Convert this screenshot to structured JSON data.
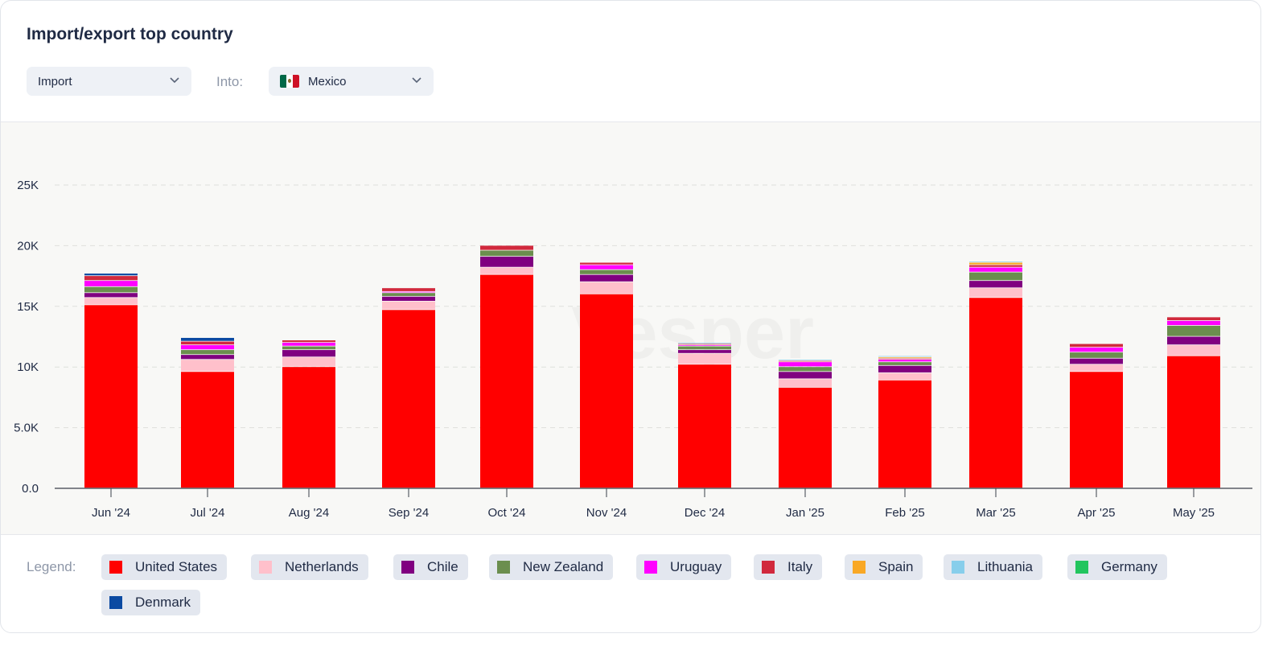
{
  "header": {
    "title": "Import/export top country",
    "flow_select": {
      "value": "Import",
      "icon": "chevron-down-icon"
    },
    "into_label": "Into:",
    "country_select": {
      "value": "Mexico",
      "flag": "mexico-flag-icon",
      "flag_colors": [
        "#006847",
        "#ffffff",
        "#ce1126"
      ],
      "icon": "chevron-down-icon"
    }
  },
  "legend": {
    "label": "Legend:",
    "items": [
      {
        "name": "United States",
        "color": "#ff0000"
      },
      {
        "name": "Netherlands",
        "color": "#ffc0cb"
      },
      {
        "name": "Chile",
        "color": "#800080"
      },
      {
        "name": "New Zealand",
        "color": "#6b8e4e"
      },
      {
        "name": "Uruguay",
        "color": "#ff00ff"
      },
      {
        "name": "Italy",
        "color": "#d1293d"
      },
      {
        "name": "Spain",
        "color": "#f9a825"
      },
      {
        "name": "Lithuania",
        "color": "#87ceeb"
      },
      {
        "name": "Germany",
        "color": "#22c55e"
      },
      {
        "name": "Denmark",
        "color": "#0b4aa2"
      }
    ]
  },
  "chart_data": {
    "type": "bar",
    "stacked": true,
    "title": "",
    "xlabel": "",
    "ylabel": "",
    "ylim": [
      0,
      25000
    ],
    "yticks": [
      0,
      5000,
      10000,
      15000,
      20000,
      25000
    ],
    "ytick_labels": [
      "0.0",
      "5.0K",
      "10K",
      "15K",
      "20K",
      "25K"
    ],
    "grid": true,
    "watermark": "Vesper",
    "categories": [
      "Jun '24",
      "Jul '24",
      "Aug '24",
      "Sep '24",
      "Oct '24",
      "Nov '24",
      "Dec '24",
      "Jan '25",
      "Feb '25",
      "Mar '25",
      "Apr '25",
      "May '25"
    ],
    "series": [
      {
        "name": "United States",
        "color": "#ff0000",
        "values": [
          15100,
          9600,
          10000,
          14700,
          17600,
          16000,
          10200,
          8300,
          8900,
          15700,
          9600,
          10900
        ]
      },
      {
        "name": "Netherlands",
        "color": "#ffc0cb",
        "values": [
          600,
          1000,
          800,
          700,
          600,
          1000,
          900,
          700,
          600,
          800,
          600,
          900
        ]
      },
      {
        "name": "Chile",
        "color": "#800080",
        "values": [
          400,
          400,
          600,
          400,
          900,
          600,
          300,
          600,
          600,
          600,
          500,
          700
        ]
      },
      {
        "name": "New Zealand",
        "color": "#6b8e4e",
        "values": [
          500,
          400,
          300,
          300,
          500,
          400,
          300,
          400,
          300,
          700,
          500,
          900
        ]
      },
      {
        "name": "Uruguay",
        "color": "#ff00ff",
        "values": [
          500,
          400,
          300,
          100,
          0,
          400,
          100,
          400,
          200,
          400,
          400,
          400
        ]
      },
      {
        "name": "Italy",
        "color": "#d1293d",
        "values": [
          400,
          300,
          200,
          300,
          400,
          200,
          100,
          100,
          100,
          200,
          300,
          300
        ]
      },
      {
        "name": "Spain",
        "color": "#f9a825",
        "values": [
          0,
          0,
          0,
          0,
          0,
          0,
          0,
          0,
          100,
          200,
          0,
          0
        ]
      },
      {
        "name": "Lithuania",
        "color": "#87ceeb",
        "values": [
          0,
          0,
          0,
          0,
          0,
          0,
          100,
          100,
          100,
          100,
          0,
          0
        ]
      },
      {
        "name": "Germany",
        "color": "#22c55e",
        "values": [
          0,
          0,
          0,
          0,
          0,
          0,
          0,
          0,
          0,
          0,
          0,
          0
        ]
      },
      {
        "name": "Denmark",
        "color": "#0b4aa2",
        "values": [
          200,
          300,
          0,
          0,
          0,
          0,
          0,
          0,
          0,
          0,
          0,
          0
        ]
      }
    ]
  }
}
